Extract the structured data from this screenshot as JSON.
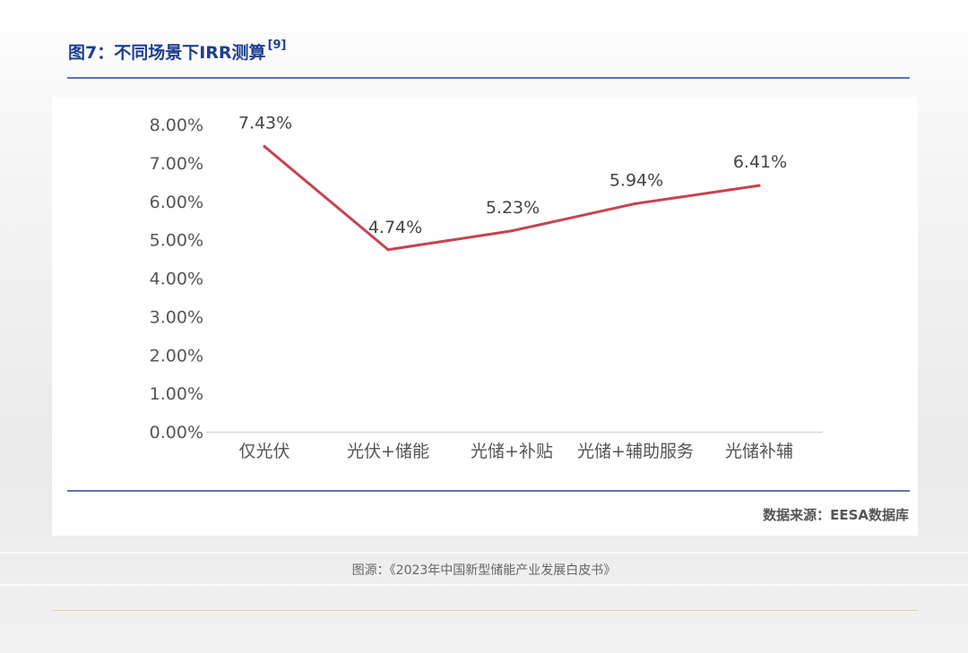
{
  "figure": {
    "title": "图7：不同场景下IRR测算",
    "title_ref": "[9]",
    "source_note": "数据来源：EESA数据库"
  },
  "caption": "图源：《2023年中国新型储能产业发展白皮书》",
  "chart_data": {
    "type": "line",
    "title": "",
    "xlabel": "",
    "ylabel": "",
    "categories": [
      "仅光伏",
      "光伏+储能",
      "光储+补贴",
      "光储+辅助服务",
      "光储补辅"
    ],
    "series": [
      {
        "name": "",
        "values": [
          7.43,
          4.74,
          5.23,
          5.94,
          6.41
        ],
        "labels": [
          "7.43%",
          "4.74%",
          "5.23%",
          "5.94%",
          "6.41%"
        ],
        "color": "#c8424f"
      }
    ],
    "y_ticks": [
      "0.00%",
      "1.00%",
      "2.00%",
      "3.00%",
      "4.00%",
      "5.00%",
      "6.00%",
      "7.00%",
      "8.00%"
    ],
    "ylim": [
      0,
      8
    ],
    "grid": false,
    "legend": "none"
  }
}
